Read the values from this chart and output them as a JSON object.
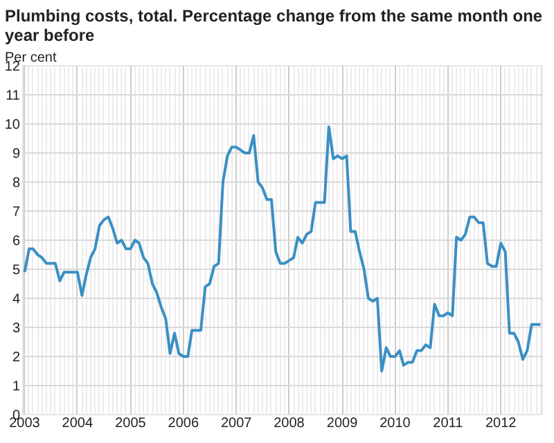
{
  "chart_data": {
    "type": "line",
    "title": "Plumbing costs, total. Percentage change from the same month one year before",
    "ylabel": "Per cent",
    "x": [
      "2003-01",
      "2003-02",
      "2003-03",
      "2003-04",
      "2003-05",
      "2003-06",
      "2003-07",
      "2003-08",
      "2003-09",
      "2003-10",
      "2003-11",
      "2003-12",
      "2004-01",
      "2004-02",
      "2004-03",
      "2004-04",
      "2004-05",
      "2004-06",
      "2004-07",
      "2004-08",
      "2004-09",
      "2004-10",
      "2004-11",
      "2004-12",
      "2005-01",
      "2005-02",
      "2005-03",
      "2005-04",
      "2005-05",
      "2005-06",
      "2005-07",
      "2005-08",
      "2005-09",
      "2005-10",
      "2005-11",
      "2005-12",
      "2006-01",
      "2006-02",
      "2006-03",
      "2006-04",
      "2006-05",
      "2006-06",
      "2006-07",
      "2006-08",
      "2006-09",
      "2006-10",
      "2006-11",
      "2006-12",
      "2007-01",
      "2007-02",
      "2007-03",
      "2007-04",
      "2007-05",
      "2007-06",
      "2007-07",
      "2007-08",
      "2007-09",
      "2007-10",
      "2007-11",
      "2007-12",
      "2008-01",
      "2008-02",
      "2008-03",
      "2008-04",
      "2008-05",
      "2008-06",
      "2008-07",
      "2008-08",
      "2008-09",
      "2008-10",
      "2008-11",
      "2008-12",
      "2009-01",
      "2009-02",
      "2009-03",
      "2009-04",
      "2009-05",
      "2009-06",
      "2009-07",
      "2009-08",
      "2009-09",
      "2009-10",
      "2009-11",
      "2009-12",
      "2010-01",
      "2010-02",
      "2010-03",
      "2010-04",
      "2010-05",
      "2010-06",
      "2010-07",
      "2010-08",
      "2010-09",
      "2010-10",
      "2010-11",
      "2010-12",
      "2011-01",
      "2011-02",
      "2011-03",
      "2011-04",
      "2011-05",
      "2011-06",
      "2011-07",
      "2011-08",
      "2011-09",
      "2011-10",
      "2011-11",
      "2011-12",
      "2012-01",
      "2012-02",
      "2012-03",
      "2012-04",
      "2012-05",
      "2012-06",
      "2012-07",
      "2012-08",
      "2012-09",
      "2012-10"
    ],
    "series": [
      {
        "color": "#3a8fc4",
        "values": [
          4.9,
          5.7,
          5.7,
          5.5,
          5.4,
          5.2,
          5.2,
          5.2,
          4.6,
          4.9,
          4.9,
          4.9,
          4.9,
          4.1,
          4.8,
          5.4,
          5.7,
          6.5,
          6.7,
          6.8,
          6.4,
          5.9,
          6.0,
          5.7,
          5.7,
          6.0,
          5.9,
          5.4,
          5.2,
          4.5,
          4.2,
          3.7,
          3.3,
          2.1,
          2.8,
          2.1,
          2.0,
          2.0,
          2.9,
          2.9,
          2.9,
          4.4,
          4.5,
          5.1,
          5.2,
          8.0,
          8.9,
          9.2,
          9.2,
          9.1,
          9.0,
          9.0,
          9.6,
          8.0,
          7.8,
          7.4,
          7.4,
          5.6,
          5.2,
          5.2,
          5.3,
          5.4,
          6.1,
          5.9,
          6.2,
          6.3,
          7.3,
          7.3,
          7.3,
          9.9,
          8.8,
          8.9,
          8.8,
          8.9,
          6.3,
          6.3,
          5.6,
          5.0,
          4.0,
          3.9,
          4.0,
          1.5,
          2.3,
          2.0,
          2.0,
          2.2,
          1.7,
          1.8,
          1.8,
          2.2,
          2.2,
          2.4,
          2.3,
          3.8,
          3.4,
          3.4,
          3.5,
          3.4,
          6.1,
          6.0,
          6.2,
          6.8,
          6.8,
          6.6,
          6.6,
          5.2,
          5.1,
          5.1,
          5.9,
          5.6,
          2.8,
          2.8,
          2.5,
          1.9,
          2.2,
          3.1,
          3.1,
          3.1
        ]
      }
    ],
    "xlim": [
      "2002-12-20",
      "2012-10-13"
    ],
    "xticks": [
      "2003",
      "2004",
      "2005",
      "2006",
      "2007",
      "2008",
      "2009",
      "2010",
      "2011",
      "2012"
    ],
    "ylim": [
      0,
      12
    ],
    "yticks": [
      0,
      1,
      2,
      3,
      4,
      5,
      6,
      7,
      8,
      9,
      10,
      11,
      12
    ],
    "grid": true,
    "marker": "none",
    "line_style": "solid"
  }
}
